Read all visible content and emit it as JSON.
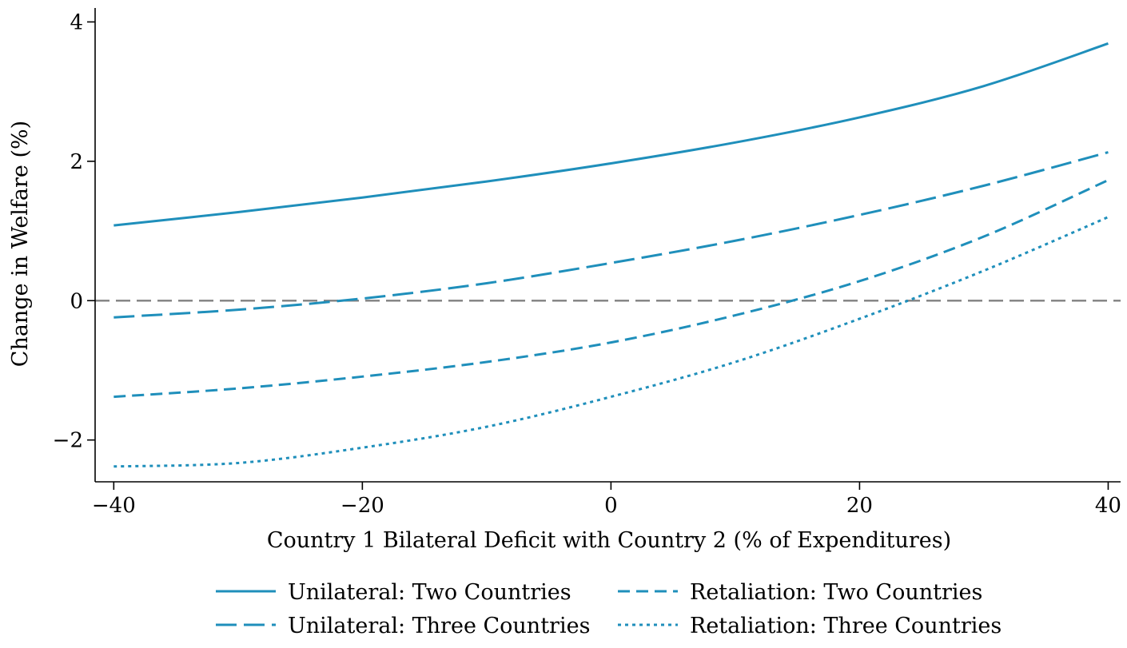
{
  "chart_data": {
    "type": "line",
    "title": "",
    "xlabel": "Country 1 Bilateral Deficit with Country 2 (% of Expenditures)",
    "ylabel": "Change in Welfare (%)",
    "xlim": [
      -41.5,
      41
    ],
    "ylim": [
      -2.6,
      4.2
    ],
    "xticks": [
      -40,
      -20,
      0,
      20,
      40
    ],
    "xtick_labels": [
      "−40",
      "−20",
      "0",
      "20",
      "40"
    ],
    "yticks": [
      -2,
      0,
      2,
      4
    ],
    "ytick_labels": [
      "−2",
      "0",
      "2",
      "4"
    ],
    "grid": false,
    "legend_position": "bottom",
    "reference_line": {
      "y": 0,
      "color": "#808080",
      "style": "dashed"
    },
    "x": [
      -40,
      -30,
      -20,
      -10,
      0,
      10,
      20,
      30,
      40
    ],
    "series": [
      {
        "name": "Unilateral: Two Countries",
        "style": "solid",
        "color": "#1f8fbb",
        "values": [
          1.08,
          1.27,
          1.48,
          1.71,
          1.97,
          2.27,
          2.63,
          3.08,
          3.69
        ]
      },
      {
        "name": "Unilateral: Three Countries",
        "style": "longdash",
        "color": "#1f8fbb",
        "values": [
          -0.24,
          -0.13,
          0.03,
          0.25,
          0.54,
          0.86,
          1.23,
          1.65,
          2.13
        ]
      },
      {
        "name": "Retaliation: Two Countries",
        "style": "dash",
        "color": "#1f8fbb",
        "values": [
          -1.38,
          -1.26,
          -1.09,
          -0.88,
          -0.6,
          -0.21,
          0.28,
          0.92,
          1.73
        ]
      },
      {
        "name": "Retaliation: Three Countries",
        "style": "dot",
        "color": "#1f8fbb",
        "values": [
          -2.38,
          -2.33,
          -2.11,
          -1.81,
          -1.38,
          -0.88,
          -0.26,
          0.43,
          1.2
        ]
      }
    ]
  }
}
